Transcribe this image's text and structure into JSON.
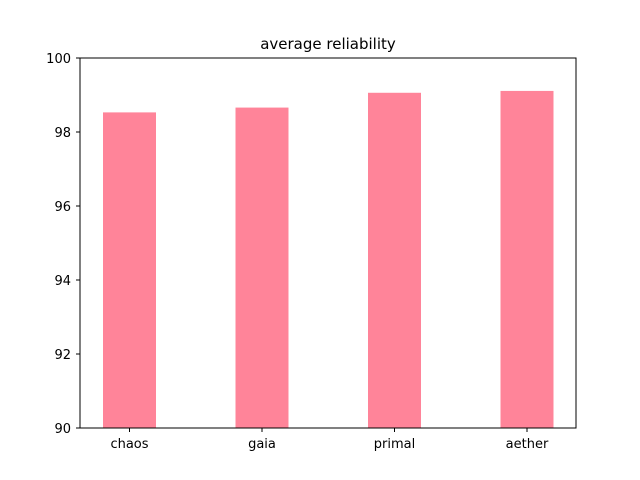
{
  "chart_data": {
    "type": "bar",
    "title": "average reliability",
    "xlabel": "",
    "ylabel": "",
    "categories": [
      "chaos",
      "gaia",
      "primal",
      "aether"
    ],
    "values": [
      98.53,
      98.66,
      99.06,
      99.11
    ],
    "ylim": [
      90,
      100
    ],
    "yticks": [
      90,
      92,
      94,
      96,
      98,
      100
    ],
    "grid": false,
    "bar_color": "#ff8499"
  }
}
